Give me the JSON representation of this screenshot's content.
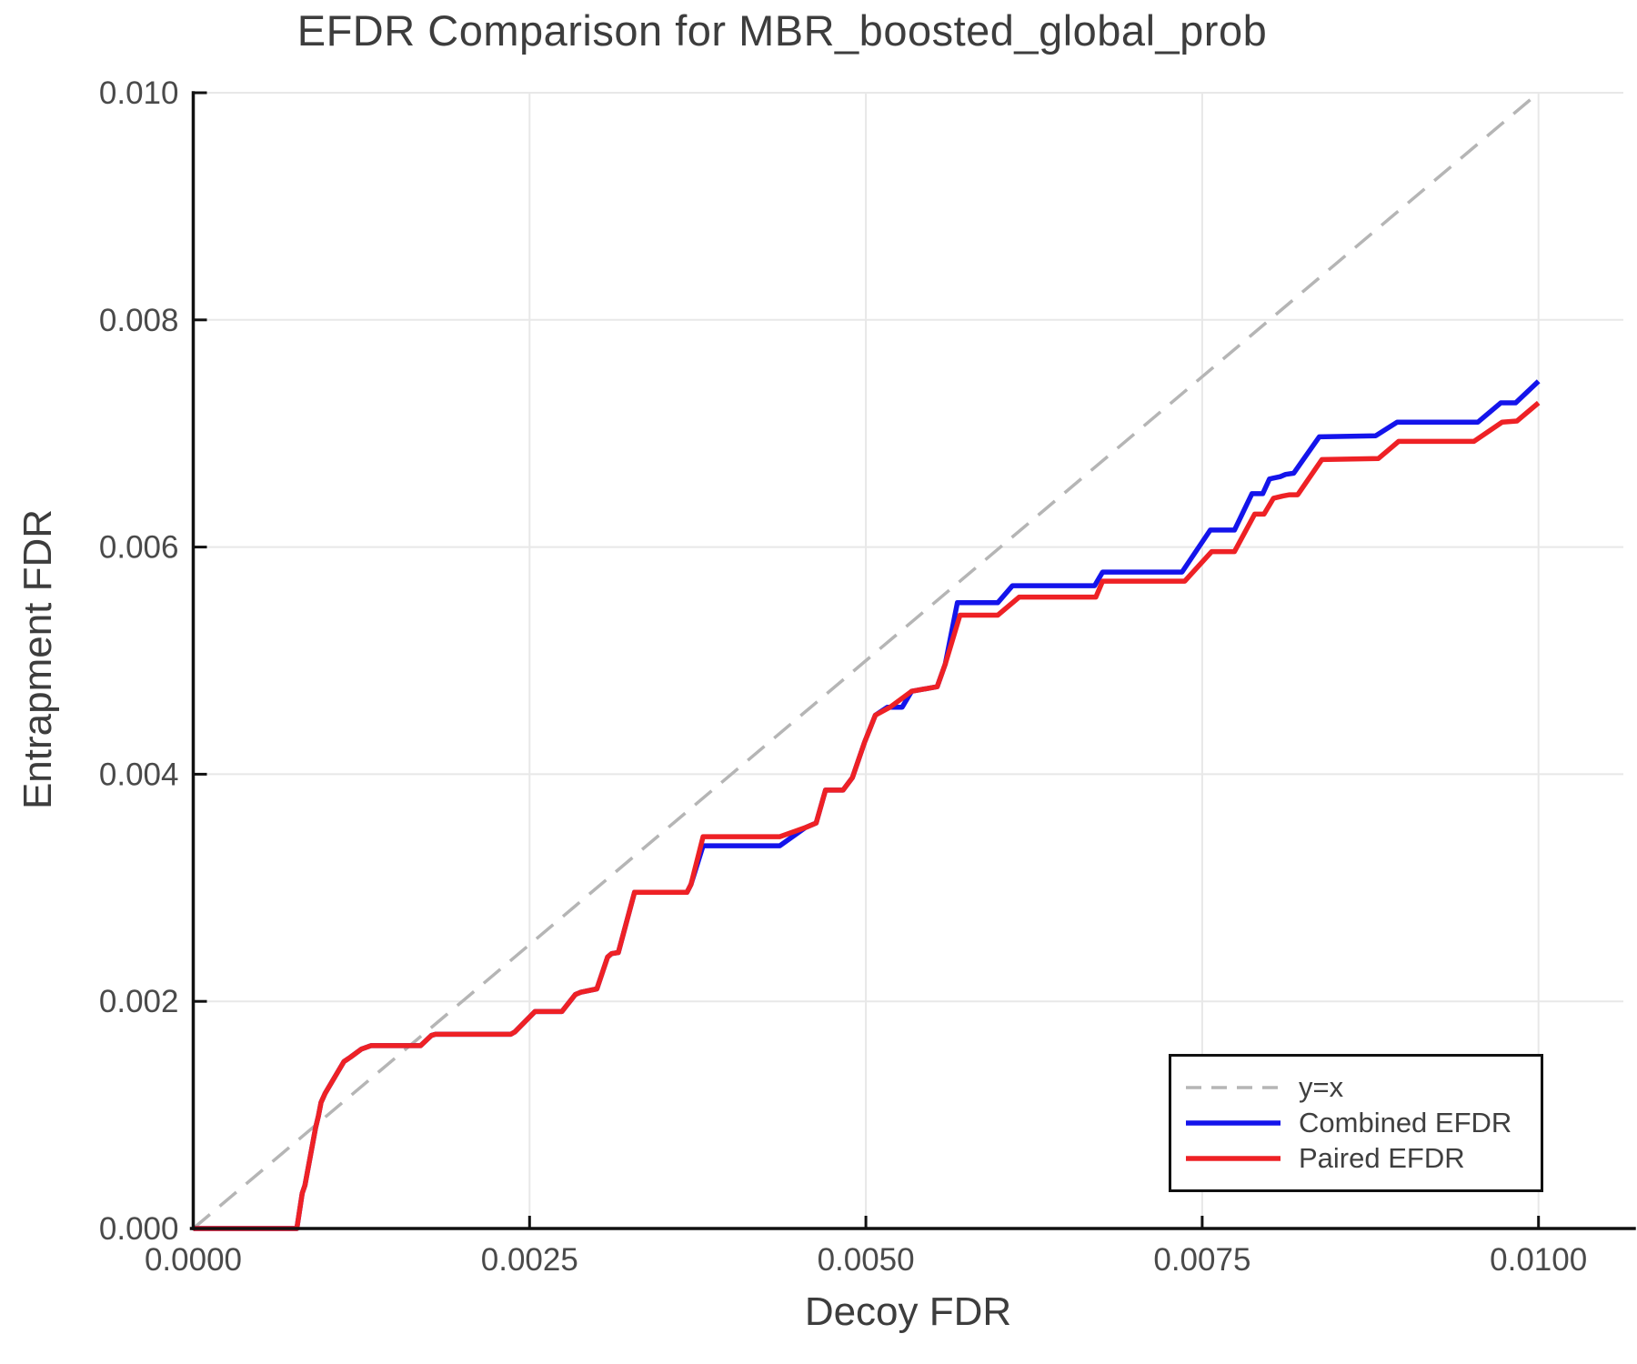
{
  "title": "EFDR Comparison for MBR_boosted_global_prob",
  "chart_data": {
    "type": "line",
    "title": "EFDR Comparison for MBR_boosted_global_prob",
    "xlabel": "Decoy FDR",
    "ylabel": "Entrapment FDR",
    "xlim": [
      0.0,
      0.0106
    ],
    "ylim": [
      0.0,
      0.01
    ],
    "grid": true,
    "legend_position": "lower right",
    "x_ticks": [
      0.0,
      0.0025,
      0.005,
      0.0075,
      0.01
    ],
    "x_tick_labels": [
      "0.0000",
      "0.0025",
      "0.0050",
      "0.0075",
      "0.0100"
    ],
    "y_ticks": [
      0.0,
      0.002,
      0.004,
      0.006,
      0.008,
      0.01
    ],
    "y_tick_labels": [
      "0.000",
      "0.002",
      "0.004",
      "0.006",
      "0.008",
      "0.010"
    ],
    "series": [
      {
        "name": "y=x",
        "style": "dashed",
        "color": "#b5b5b5",
        "width": 3.5,
        "points": [
          [
            0.0,
            0.0
          ],
          [
            0.01,
            0.01
          ]
        ]
      },
      {
        "name": "Combined EFDR",
        "style": "solid",
        "color": "#1414eb",
        "width": 5.5,
        "points": [
          [
            0.0,
            0.0
          ],
          [
            0.00077,
            0.0
          ],
          [
            0.00081,
            0.00031
          ],
          [
            0.00083,
            0.00038
          ],
          [
            0.00091,
            0.00089
          ],
          [
            0.00093,
            0.00099
          ],
          [
            0.00095,
            0.00111
          ],
          [
            0.00098,
            0.00119
          ],
          [
            0.00107,
            0.00137
          ],
          [
            0.00112,
            0.00147
          ],
          [
            0.00117,
            0.00151
          ],
          [
            0.00125,
            0.00158
          ],
          [
            0.00132,
            0.00161
          ],
          [
            0.00169,
            0.00161
          ],
          [
            0.00177,
            0.0017
          ],
          [
            0.0018,
            0.00171
          ],
          [
            0.00236,
            0.00171
          ],
          [
            0.00239,
            0.00173
          ],
          [
            0.00254,
            0.00191
          ],
          [
            0.00274,
            0.00191
          ],
          [
            0.00284,
            0.00206
          ],
          [
            0.00288,
            0.00208
          ],
          [
            0.003,
            0.00211
          ],
          [
            0.00308,
            0.00239
          ],
          [
            0.00311,
            0.00242
          ],
          [
            0.00316,
            0.00243
          ],
          [
            0.00328,
            0.00296
          ],
          [
            0.00367,
            0.00296
          ],
          [
            0.0037,
            0.00303
          ],
          [
            0.00379,
            0.00337
          ],
          [
            0.00436,
            0.00337
          ],
          [
            0.00455,
            0.00353
          ],
          [
            0.00463,
            0.00357
          ],
          [
            0.0047,
            0.00386
          ],
          [
            0.00483,
            0.00386
          ],
          [
            0.0049,
            0.00397
          ],
          [
            0.00499,
            0.00428
          ],
          [
            0.00507,
            0.00452
          ],
          [
            0.00516,
            0.00459
          ],
          [
            0.00527,
            0.00459
          ],
          [
            0.00534,
            0.00473
          ],
          [
            0.00553,
            0.00477
          ],
          [
            0.00559,
            0.00497
          ],
          [
            0.00568,
            0.00551
          ],
          [
            0.00598,
            0.00551
          ],
          [
            0.00609,
            0.00566
          ],
          [
            0.0067,
            0.00566
          ],
          [
            0.00676,
            0.00578
          ],
          [
            0.00735,
            0.00578
          ],
          [
            0.00756,
            0.00615
          ],
          [
            0.00774,
            0.00615
          ],
          [
            0.00787,
            0.00647
          ],
          [
            0.00795,
            0.00647
          ],
          [
            0.008,
            0.0066
          ],
          [
            0.00808,
            0.00662
          ],
          [
            0.00812,
            0.00664
          ],
          [
            0.00818,
            0.00665
          ],
          [
            0.00837,
            0.00697
          ],
          [
            0.00879,
            0.00698
          ],
          [
            0.00895,
            0.0071
          ],
          [
            0.00955,
            0.0071
          ],
          [
            0.00972,
            0.00727
          ],
          [
            0.00983,
            0.00727
          ],
          [
            0.01,
            0.00746
          ]
        ]
      },
      {
        "name": "Paired EFDR",
        "style": "solid",
        "color": "#ee2125",
        "width": 5.5,
        "points": [
          [
            0.0,
            0.0
          ],
          [
            0.00077,
            0.0
          ],
          [
            0.00081,
            0.00031
          ],
          [
            0.00083,
            0.00038
          ],
          [
            0.00091,
            0.00089
          ],
          [
            0.00093,
            0.00099
          ],
          [
            0.00095,
            0.00111
          ],
          [
            0.00098,
            0.00119
          ],
          [
            0.00107,
            0.00137
          ],
          [
            0.00112,
            0.00147
          ],
          [
            0.00117,
            0.00151
          ],
          [
            0.00125,
            0.00158
          ],
          [
            0.00132,
            0.00161
          ],
          [
            0.00169,
            0.00161
          ],
          [
            0.00177,
            0.0017
          ],
          [
            0.0018,
            0.00171
          ],
          [
            0.00236,
            0.00171
          ],
          [
            0.00239,
            0.00173
          ],
          [
            0.00254,
            0.00191
          ],
          [
            0.00274,
            0.00191
          ],
          [
            0.00284,
            0.00206
          ],
          [
            0.00288,
            0.00208
          ],
          [
            0.003,
            0.00211
          ],
          [
            0.00308,
            0.00239
          ],
          [
            0.00311,
            0.00242
          ],
          [
            0.00316,
            0.00243
          ],
          [
            0.00328,
            0.00296
          ],
          [
            0.00367,
            0.00296
          ],
          [
            0.0037,
            0.00303
          ],
          [
            0.00379,
            0.00345
          ],
          [
            0.00436,
            0.00345
          ],
          [
            0.00455,
            0.00353
          ],
          [
            0.00463,
            0.00357
          ],
          [
            0.0047,
            0.00386
          ],
          [
            0.00483,
            0.00386
          ],
          [
            0.0049,
            0.00397
          ],
          [
            0.00499,
            0.00428
          ],
          [
            0.00507,
            0.00452
          ],
          [
            0.00518,
            0.00459
          ],
          [
            0.00534,
            0.00473
          ],
          [
            0.00553,
            0.00477
          ],
          [
            0.00559,
            0.00497
          ],
          [
            0.0057,
            0.0054
          ],
          [
            0.00598,
            0.0054
          ],
          [
            0.00614,
            0.00556
          ],
          [
            0.00671,
            0.00556
          ],
          [
            0.00676,
            0.0057
          ],
          [
            0.00737,
            0.0057
          ],
          [
            0.00757,
            0.00596
          ],
          [
            0.00774,
            0.00596
          ],
          [
            0.00789,
            0.00629
          ],
          [
            0.00796,
            0.00629
          ],
          [
            0.00803,
            0.00643
          ],
          [
            0.0081,
            0.00645
          ],
          [
            0.00815,
            0.00646
          ],
          [
            0.00821,
            0.00646
          ],
          [
            0.00839,
            0.00677
          ],
          [
            0.00881,
            0.00678
          ],
          [
            0.00896,
            0.00693
          ],
          [
            0.00952,
            0.00693
          ],
          [
            0.00973,
            0.0071
          ],
          [
            0.00984,
            0.00711
          ],
          [
            0.01,
            0.00727
          ]
        ]
      }
    ]
  },
  "legend": {
    "items": [
      "y=x",
      "Combined EFDR",
      "Paired EFDR"
    ]
  }
}
